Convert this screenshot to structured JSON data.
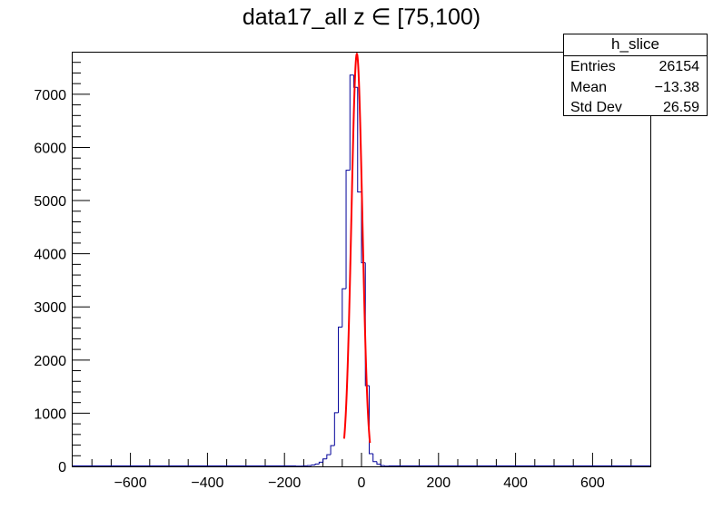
{
  "chart_data": {
    "type": "bar",
    "title": "data17_all z  ∈ [75,100)",
    "xlabel": "",
    "ylabel": "",
    "xlim": [
      -750,
      750
    ],
    "ylim": [
      0,
      7800
    ],
    "xticks": [
      -600,
      -400,
      -200,
      0,
      200,
      400,
      600
    ],
    "xtick_labels": [
      "−600",
      "−400",
      "−200",
      "0",
      "200",
      "400",
      "600"
    ],
    "yticks": [
      0,
      1000,
      2000,
      3000,
      4000,
      5000,
      6000,
      7000
    ],
    "ytick_labels": [
      "0",
      "1000",
      "2000",
      "3000",
      "4000",
      "5000",
      "6000",
      "7000"
    ],
    "grid": false,
    "bin_width": 10,
    "bins": [
      {
        "x0": -170,
        "value": 5
      },
      {
        "x0": -160,
        "value": 5
      },
      {
        "x0": -150,
        "value": 10
      },
      {
        "x0": -140,
        "value": 15
      },
      {
        "x0": -130,
        "value": 25
      },
      {
        "x0": -120,
        "value": 45
      },
      {
        "x0": -110,
        "value": 80
      },
      {
        "x0": -100,
        "value": 140
      },
      {
        "x0": -90,
        "value": 220
      },
      {
        "x0": -80,
        "value": 390
      },
      {
        "x0": -70,
        "value": 1010
      },
      {
        "x0": -60,
        "value": 2620
      },
      {
        "x0": -50,
        "value": 3340
      },
      {
        "x0": -40,
        "value": 5570
      },
      {
        "x0": -30,
        "value": 7360
      },
      {
        "x0": -20,
        "value": 7130
      },
      {
        "x0": -10,
        "value": 5160
      },
      {
        "x0": 0,
        "value": 3830
      },
      {
        "x0": 10,
        "value": 1520
      },
      {
        "x0": 20,
        "value": 240
      },
      {
        "x0": 30,
        "value": 90
      },
      {
        "x0": 40,
        "value": 40
      },
      {
        "x0": 50,
        "value": 15
      },
      {
        "x0": 60,
        "value": 5
      }
    ],
    "series": [
      {
        "type": "histogram",
        "color": "#000099"
      },
      {
        "type": "gaussian-fit",
        "color": "#ff0000",
        "amplitude": 7760,
        "mean": -12,
        "sigma": 14.2,
        "range": [
          -45,
          22
        ]
      }
    ]
  },
  "stats": {
    "name": "h_slice",
    "rows": [
      {
        "label": "Entries",
        "value": "26154"
      },
      {
        "label": "Mean",
        "value": "−13.38"
      },
      {
        "label": "Std Dev",
        "value": "26.59"
      }
    ]
  }
}
